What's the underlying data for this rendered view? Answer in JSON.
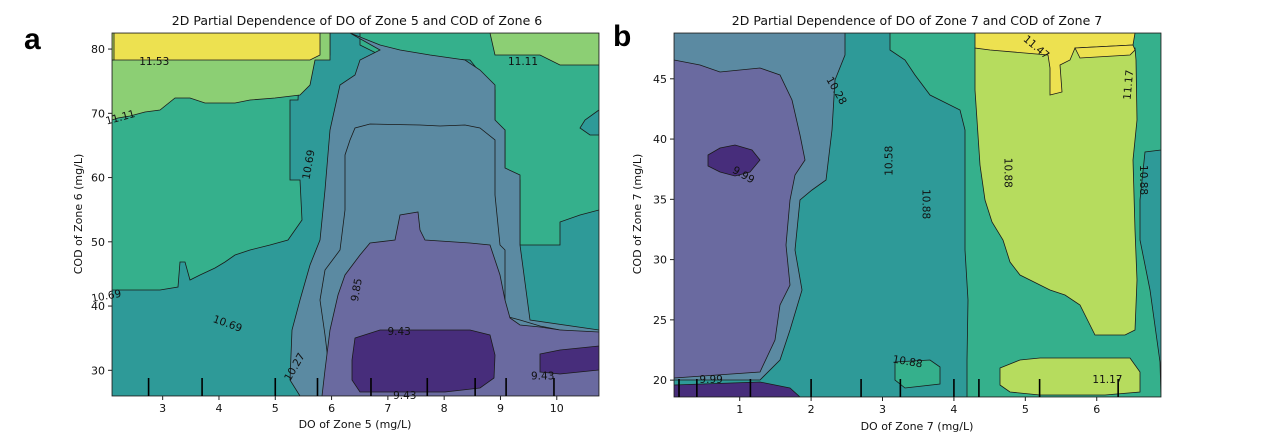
{
  "panels": [
    {
      "letter": "a",
      "title": "2D Partial Dependence of DO of Zone 5 and COD of Zone 6",
      "xlabel": "DO of Zone 5  (mg/L)",
      "ylabel": "COD of Zone 6  (mg/L)"
    },
    {
      "letter": "b",
      "title": "2D Partial Dependence of DO of Zone 7 and COD of Zone 7",
      "xlabel": "DO of Zone 7 (mg/L)",
      "ylabel": "COD of Zone 7  (mg/L)"
    }
  ],
  "colors": {
    "l0": "#472d7b",
    "l1": "#6a6aa0",
    "l2": "#5b8aa2",
    "l3": "#2e9a98",
    "l4": "#35b08c",
    "l5": "#8ccf74",
    "l6": "#b6dc5e",
    "l7": "#ede150"
  },
  "chart_data": [
    {
      "type": "contour",
      "title": "2D Partial Dependence of DO of Zone 5 and COD of Zone 6",
      "xlabel": "DO of Zone 5  (mg/L)",
      "ylabel": "COD of Zone 6  (mg/L)",
      "xlim": [
        2.1,
        10.75
      ],
      "ylim": [
        26.0,
        82.5
      ],
      "xticks": [
        3,
        4,
        5,
        6,
        7,
        8,
        9,
        10
      ],
      "yticks": [
        30,
        40,
        50,
        60,
        70,
        80
      ],
      "levels": [
        9.43,
        9.85,
        10.27,
        10.69,
        11.11,
        11.53
      ],
      "contour_labels": [
        {
          "text": "11.53",
          "x": 2.85,
          "y": 78.0
        },
        {
          "text": "11.11",
          "x": 9.4,
          "y": 78.0
        },
        {
          "text": "11.11",
          "x": 2.25,
          "y": 69.3,
          "rotate": -15
        },
        {
          "text": "10.69",
          "x": 5.6,
          "y": 62.0,
          "rotate": -80
        },
        {
          "text": "10.69",
          "x": 2.0,
          "y": 41.5,
          "rotate": -10
        },
        {
          "text": "10.69",
          "x": 4.15,
          "y": 37.2,
          "rotate": 20
        },
        {
          "text": "10.27",
          "x": 5.35,
          "y": 30.5,
          "rotate": -60
        },
        {
          "text": "9.85",
          "x": 6.45,
          "y": 42.5,
          "rotate": -80
        },
        {
          "text": "9.43",
          "x": 7.2,
          "y": 36.0
        },
        {
          "text": "9.43",
          "x": 7.3,
          "y": 26.0
        },
        {
          "text": "9.43",
          "x": 9.75,
          "y": 29.0
        }
      ],
      "rug_x": [
        2.75,
        3.7,
        5.0,
        5.75,
        6.7,
        7.7,
        8.55,
        9.1,
        9.95
      ]
    },
    {
      "type": "contour",
      "title": "2D Partial Dependence of DO of Zone 7 and COD of Zone 7",
      "xlabel": "DO of Zone 7 (mg/L)",
      "ylabel": "COD of Zone 7  (mg/L)",
      "xlim": [
        0.08,
        6.9
      ],
      "ylim": [
        18.6,
        48.8
      ],
      "xticks": [
        1,
        2,
        3,
        4,
        5,
        6
      ],
      "yticks": [
        20,
        25,
        30,
        35,
        40,
        45
      ],
      "levels": [
        9.99,
        10.28,
        10.58,
        10.88,
        11.17,
        11.47
      ],
      "contour_labels": [
        {
          "text": "11.47",
          "x": 5.15,
          "y": 47.6,
          "rotate": 40
        },
        {
          "text": "11.17",
          "x": 6.45,
          "y": 44.5,
          "rotate": -85
        },
        {
          "text": "10.88",
          "x": 6.65,
          "y": 36.6,
          "rotate": 90
        },
        {
          "text": "10.88",
          "x": 4.75,
          "y": 37.2,
          "rotate": 90
        },
        {
          "text": "10.88",
          "x": 3.6,
          "y": 34.6,
          "rotate": 90
        },
        {
          "text": "10.58",
          "x": 3.1,
          "y": 38.2,
          "rotate": -90
        },
        {
          "text": "10.28",
          "x": 2.35,
          "y": 44.0,
          "rotate": 60
        },
        {
          "text": "9.99",
          "x": 1.05,
          "y": 37.0,
          "rotate": 30
        },
        {
          "text": "9.99",
          "x": 0.6,
          "y": 20.0
        },
        {
          "text": "10.88",
          "x": 3.35,
          "y": 21.5,
          "rotate": 10
        },
        {
          "text": "11.17",
          "x": 6.15,
          "y": 20.0
        }
      ],
      "rug_x": [
        0.15,
        0.4,
        1.15,
        2.0,
        2.7,
        3.25,
        4.0,
        4.35,
        5.2,
        6.3
      ]
    }
  ]
}
